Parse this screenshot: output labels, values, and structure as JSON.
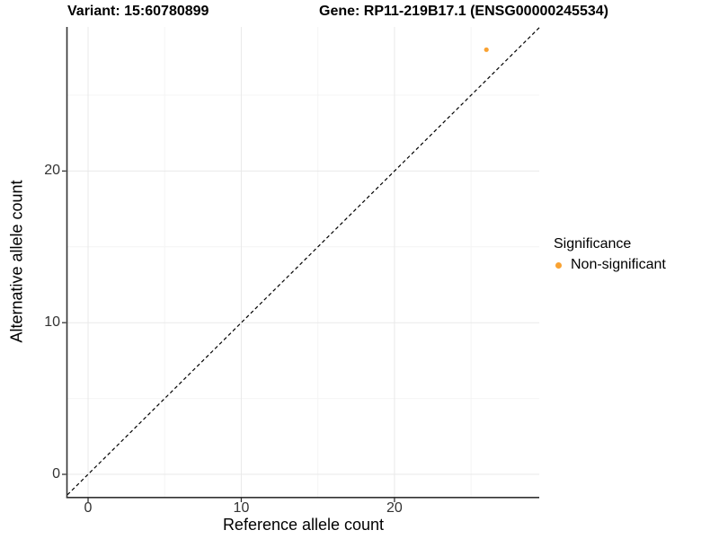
{
  "titles": {
    "variant": "Variant: 15:60780899",
    "gene": "Gene: RP11-219B17.1 (ENSG00000245534)"
  },
  "chart_data": {
    "type": "scatter",
    "xlabel": "Reference allele count",
    "ylabel": "Alternative allele count",
    "xlim": [
      -1.35,
      29.45
    ],
    "ylim": [
      -1.48,
      29.5
    ],
    "x_ticks": [
      0,
      10,
      20
    ],
    "y_ticks": [
      0,
      10,
      20
    ],
    "x_minor_ticks": [
      5,
      15,
      25
    ],
    "y_minor_ticks": [
      5,
      15,
      25
    ],
    "grid": "major+minor",
    "identity_line": {
      "type": "abline",
      "slope": 1,
      "intercept": 0,
      "style": "dashed",
      "color": "#000000"
    },
    "series": [
      {
        "name": "Non-significant",
        "color": "#F9A232",
        "points": [
          {
            "x": 26,
            "y": 28
          }
        ]
      }
    ],
    "legend": {
      "title": "Significance",
      "position": "right",
      "entries": [
        {
          "label": "Non-significant",
          "color": "#F9A232"
        }
      ]
    },
    "style": {
      "grid_major_color": "#E9E9E9",
      "grid_minor_color": "#F4F4F4",
      "axis_line_color": "#333333",
      "tick_color": "#333333",
      "point_radius": 2.6,
      "background": "#FFFFFF"
    }
  }
}
